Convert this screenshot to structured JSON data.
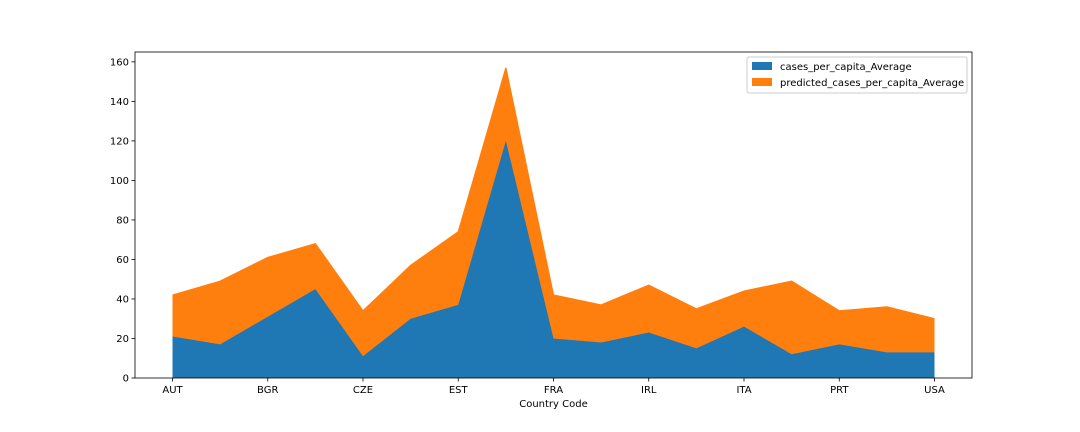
{
  "chart_data": {
    "type": "area",
    "stacked": true,
    "xlabel": "Country Code",
    "ylabel": "",
    "ylim": [
      0,
      165
    ],
    "yticks": [
      0,
      20,
      40,
      60,
      80,
      100,
      120,
      140,
      160
    ],
    "x_tick_labels": [
      {
        "index": 0,
        "label": "AUT"
      },
      {
        "index": 2,
        "label": "BGR"
      },
      {
        "index": 4,
        "label": "CZE"
      },
      {
        "index": 6,
        "label": "EST"
      },
      {
        "index": 8,
        "label": "FRA"
      },
      {
        "index": 10,
        "label": "IRL"
      },
      {
        "index": 12,
        "label": "ITA"
      },
      {
        "index": 14,
        "label": "PRT"
      },
      {
        "index": 16,
        "label": "USA"
      }
    ],
    "point_count": 17,
    "grid": false,
    "legend_position": "top-right",
    "series": [
      {
        "name": "cases_per_capita_Average",
        "color": "#1f77b4",
        "values": [
          21,
          17,
          31,
          45,
          11,
          30,
          37,
          120,
          20,
          18,
          23,
          15,
          26,
          12,
          17,
          13,
          13
        ]
      },
      {
        "name": "predicted_cases_per_capita_Average",
        "color": "#ff7f0e",
        "values": [
          21,
          32,
          30,
          23,
          23,
          27,
          37,
          37,
          22,
          19,
          24,
          20,
          18,
          37,
          17,
          23,
          17
        ]
      }
    ]
  }
}
